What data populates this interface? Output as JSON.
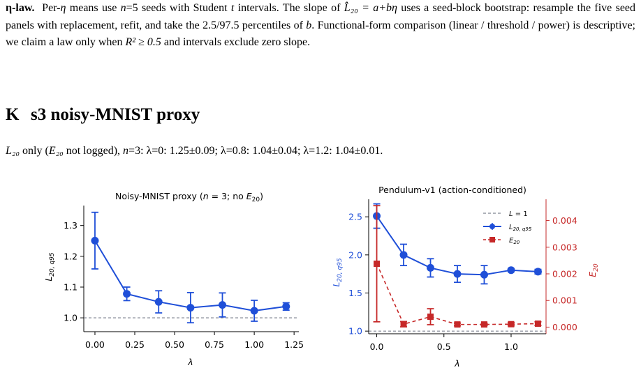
{
  "paragraph": {
    "lead": "η-law.",
    "t1": "Per-",
    "eta": "η",
    "t2": " means use ",
    "n5": "n",
    "t3": "=5 seeds with Student ",
    "tvar": "t",
    "t4": " intervals. The slope of ",
    "formula": "L̂₂₀ = a+bη",
    "t5": " uses a seed-block bootstrap: resample the five seed panels with replacement, refit, and take the 2.5/97.5 percentiles of ",
    "bvar": "b",
    "t6": ". Functional-form comparison (linear / threshold / power) is descriptive; we claim a law only when ",
    "r2": "R² ≥ 0.5",
    "t7": " and intervals exclude zero slope."
  },
  "section": {
    "number": "K",
    "title": "s3 noisy-MNIST proxy"
  },
  "summary": {
    "L20": "L₂₀",
    "only": " only (",
    "E20": "E₂₀",
    "notlogged": " not logged), ",
    "n": "n",
    "rest": "=3: λ=0: 1.25±0.09; λ=0.8: 1.04±0.04; λ=1.2: 1.04±0.01."
  },
  "colors": {
    "blue": "#1f4fd8",
    "red": "#c62828",
    "ref": "#7f8490"
  },
  "chart_data": [
    {
      "type": "line",
      "title": "Noisy-MNIST proxy (n = 3; no E20)",
      "xlabel": "λ",
      "ylabel": "L20,q95",
      "xlim": [
        -0.07,
        1.28
      ],
      "ylim": [
        0.955,
        1.365
      ],
      "xticks": [
        "0.00",
        "0.25",
        "0.50",
        "0.75",
        "1.00",
        "1.25"
      ],
      "xtick_values": [
        0,
        0.25,
        0.5,
        0.75,
        1.0,
        1.25
      ],
      "yticks": [
        "1.0",
        "1.1",
        "1.2",
        "1.3"
      ],
      "ytick_values": [
        1.0,
        1.1,
        1.2,
        1.3
      ],
      "reference_line": 1.0,
      "series": [
        {
          "x": [
            0,
            0.2,
            0.4,
            0.6,
            0.8,
            1.0,
            1.2
          ],
          "y": [
            1.251,
            1.078,
            1.052,
            1.033,
            1.042,
            1.023,
            1.037
          ],
          "err": [
            0.092,
            0.022,
            0.036,
            0.049,
            0.039,
            0.034,
            0.012
          ],
          "color": "#1f4fd8"
        }
      ],
      "grid": false
    },
    {
      "type": "line",
      "title": "Pendulum-v1 (action-conditioned)",
      "xlabel": "λ",
      "ylabel": "L20,q95",
      "ylabel_right": "E20",
      "xlim": [
        -0.06,
        1.26
      ],
      "ylim": [
        0.965,
        2.73
      ],
      "ylim_right": [
        -0.00025,
        0.0048
      ],
      "xticks": [
        "0.0",
        "0.5",
        "1.0"
      ],
      "xtick_values": [
        0,
        0.5,
        1.0
      ],
      "yticks": [
        "1.0",
        "1.5",
        "2.0",
        "2.5"
      ],
      "ytick_values": [
        1.0,
        1.5,
        2.0,
        2.5
      ],
      "yticks_right": [
        "0.000",
        "0.001",
        "0.002",
        "0.003",
        "0.004"
      ],
      "ytick_values_right": [
        0,
        0.001,
        0.002,
        0.003,
        0.004
      ],
      "reference_line": 1.0,
      "legend": {
        "placement": "top-right",
        "entries": [
          "L = 1",
          "L20,q95",
          "E20"
        ]
      },
      "series": [
        {
          "name": "L20,q95",
          "axis": "left",
          "x": [
            0,
            0.2,
            0.4,
            0.6,
            0.8,
            1.0,
            1.2
          ],
          "y": [
            2.51,
            2.0,
            1.83,
            1.75,
            1.74,
            1.8,
            1.78
          ],
          "err": [
            0.16,
            0.14,
            0.12,
            0.11,
            0.12,
            0.02,
            0.03
          ],
          "color": "#1f4fd8"
        },
        {
          "name": "E20",
          "axis": "right",
          "x": [
            0,
            0.2,
            0.4,
            0.6,
            0.8,
            1.0,
            1.2
          ],
          "y": [
            0.00238,
            0.00011,
            0.00039,
            0.0001,
            0.0001,
            0.00011,
            0.00013
          ],
          "err": [
            0.00218,
            0.0001,
            0.0003,
            5e-05,
            4e-05,
            6e-05,
            7e-05
          ],
          "color": "#c62828"
        }
      ],
      "grid": false
    }
  ]
}
